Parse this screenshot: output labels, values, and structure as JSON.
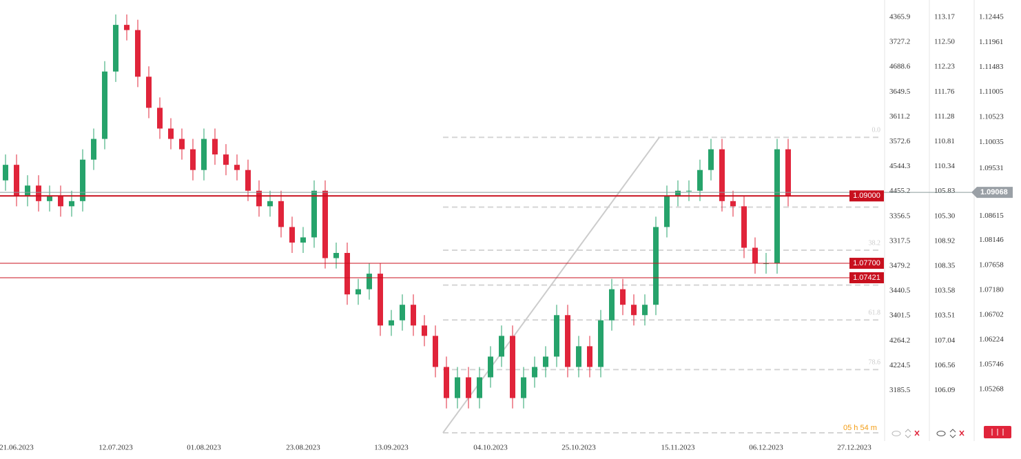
{
  "chart_data": {
    "type": "candlestick",
    "categories": [
      null,
      "21.06.2023",
      null,
      null,
      null,
      null,
      null,
      null,
      null,
      null,
      "12.07.2023",
      null,
      null,
      null,
      null,
      null,
      null,
      null,
      "01.08.2023",
      null,
      null,
      null,
      null,
      null,
      null,
      null,
      null,
      "23.08.2023",
      null,
      null,
      null,
      null,
      null,
      null,
      null,
      "13.09.2023",
      null,
      null,
      null,
      null,
      null,
      null,
      null,
      null,
      "04.10.2023",
      null,
      null,
      null,
      null,
      null,
      null,
      null,
      "25.10.2023",
      null,
      null,
      null,
      null,
      null,
      null,
      null,
      null,
      "15.11.2023",
      null,
      null,
      null,
      null,
      null,
      null,
      null,
      "06.12.2023",
      null,
      null,
      null,
      null,
      null,
      null,
      null,
      "27.12.2023"
    ],
    "open": [
      1.093,
      1.096,
      1.09,
      1.092,
      1.089,
      1.09,
      1.088,
      1.089,
      1.097,
      1.101,
      1.114,
      1.123,
      1.122,
      1.113,
      1.107,
      1.103,
      1.101,
      1.099,
      1.095,
      1.101,
      1.098,
      1.096,
      1.095,
      1.091,
      1.088,
      1.089,
      1.084,
      1.081,
      1.082,
      1.091,
      1.078,
      1.079,
      1.071,
      1.072,
      1.075,
      1.065,
      1.066,
      1.069,
      1.065,
      1.063,
      1.057,
      1.051,
      1.055,
      1.051,
      1.055,
      1.059,
      1.063,
      1.051,
      1.055,
      1.057,
      1.059,
      1.067,
      1.057,
      1.061,
      1.057,
      1.066,
      1.072,
      1.069,
      1.067,
      1.069,
      1.084,
      1.09,
      1.091,
      1.091,
      1.095,
      1.099,
      1.089,
      1.088,
      1.08,
      1.077,
      1.077,
      1.099,
      null,
      null,
      null,
      null,
      null,
      null
    ],
    "high": [
      1.098,
      1.098,
      1.094,
      1.094,
      1.092,
      1.092,
      1.091,
      1.099,
      1.103,
      1.116,
      1.125,
      1.125,
      1.124,
      1.115,
      1.109,
      1.105,
      1.103,
      1.101,
      1.103,
      1.103,
      1.1,
      1.098,
      1.097,
      1.093,
      1.091,
      1.091,
      1.086,
      1.084,
      1.093,
      1.093,
      1.081,
      1.081,
      1.074,
      1.077,
      1.077,
      1.068,
      1.071,
      1.071,
      1.067,
      1.065,
      1.059,
      1.057,
      1.057,
      1.057,
      1.061,
      1.065,
      1.065,
      1.057,
      1.059,
      1.061,
      1.069,
      1.069,
      1.063,
      1.063,
      1.068,
      1.074,
      1.074,
      1.071,
      1.071,
      1.086,
      1.092,
      1.093,
      1.093,
      1.097,
      1.101,
      1.101,
      1.091,
      1.09,
      1.082,
      1.079,
      1.101,
      1.101,
      null,
      null,
      null,
      null,
      null,
      null
    ],
    "low": [
      1.091,
      1.088,
      1.088,
      1.087,
      1.087,
      1.086,
      1.086,
      1.087,
      1.095,
      1.099,
      1.112,
      1.12,
      1.111,
      1.105,
      1.101,
      1.099,
      1.097,
      1.093,
      1.093,
      1.096,
      1.094,
      1.093,
      1.089,
      1.086,
      1.086,
      1.082,
      1.079,
      1.079,
      1.08,
      1.076,
      1.076,
      1.069,
      1.069,
      1.07,
      1.063,
      1.063,
      1.064,
      1.063,
      1.061,
      1.055,
      1.049,
      1.049,
      1.049,
      1.049,
      1.053,
      1.057,
      1.049,
      1.049,
      1.053,
      1.055,
      1.057,
      1.055,
      1.055,
      1.055,
      1.055,
      1.064,
      1.067,
      1.065,
      1.065,
      1.067,
      1.082,
      1.088,
      1.089,
      1.089,
      1.093,
      1.087,
      1.086,
      1.078,
      1.075,
      1.075,
      1.075,
      1.088,
      null,
      null,
      null,
      null,
      null,
      null
    ],
    "close": [
      1.096,
      1.09,
      1.092,
      1.089,
      1.09,
      1.088,
      1.089,
      1.097,
      1.101,
      1.114,
      1.123,
      1.122,
      1.113,
      1.107,
      1.103,
      1.101,
      1.099,
      1.095,
      1.101,
      1.098,
      1.096,
      1.095,
      1.091,
      1.088,
      1.089,
      1.084,
      1.081,
      1.082,
      1.091,
      1.078,
      1.079,
      1.071,
      1.072,
      1.075,
      1.065,
      1.066,
      1.069,
      1.065,
      1.063,
      1.057,
      1.051,
      1.055,
      1.051,
      1.055,
      1.059,
      1.063,
      1.051,
      1.055,
      1.057,
      1.059,
      1.067,
      1.057,
      1.061,
      1.057,
      1.066,
      1.072,
      1.069,
      1.067,
      1.069,
      1.084,
      1.09,
      1.091,
      1.091,
      1.095,
      1.099,
      1.089,
      1.088,
      1.08,
      1.077,
      1.077,
      1.099,
      1.09,
      null,
      null,
      null,
      null,
      null,
      null
    ],
    "up_color": "#26a36b",
    "down_color": "#e0243a",
    "ylim": [
      1.1278,
      1.0427
    ],
    "yticks": [
      1.12445,
      1.11961,
      1.11483,
      1.11005,
      1.10523,
      {
        "value": 1.10035,
        "label": "1.10035"
      },
      1.09531,
      1.08615,
      1.08146,
      1.07658,
      {
        "value": 1.0718,
        "label": "1.07180"
      },
      1.06702,
      1.06224,
      1.05746,
      1.05268
    ],
    "overlay_axes": [
      [
        "4365.9",
        "3727.2",
        "4688.6",
        "3649.5",
        "3611.2",
        "3572.6",
        "4544.3",
        "4455.2",
        "3356.5",
        "3317.5",
        "3479.2",
        "3440.5",
        "3401.5",
        "4264.2",
        "4224.5",
        "3185.5"
      ],
      [
        "113.17",
        "112.50",
        "112.23",
        "111.76",
        "111.28",
        "110.81",
        "110.34",
        "105.83",
        "105.30",
        "108.92",
        "108.35",
        "103.58",
        "103.51",
        "107.04",
        "106.56",
        "106.09"
      ]
    ],
    "levels": [
      {
        "value": 1.09,
        "label": "1.09000",
        "width": 2
      },
      {
        "value": 1.077,
        "label": "1.07700",
        "width": 1
      },
      {
        "value": 1.07421,
        "label": "1.07421",
        "width": 1
      }
    ],
    "level_color": "#c8101e",
    "current_price": {
      "value": 1.09068,
      "label": "1.09068"
    },
    "fib_prices": [
      1.1013,
      1.0443
    ],
    "fib_levels": [
      0,
      23.6,
      38.2,
      50,
      61.8,
      78.6,
      100
    ],
    "fib_labeled": [
      {
        "value": 0,
        "label": "0.0"
      },
      38.2,
      61.8,
      78.6
    ],
    "timer": "05 h 54 m"
  }
}
